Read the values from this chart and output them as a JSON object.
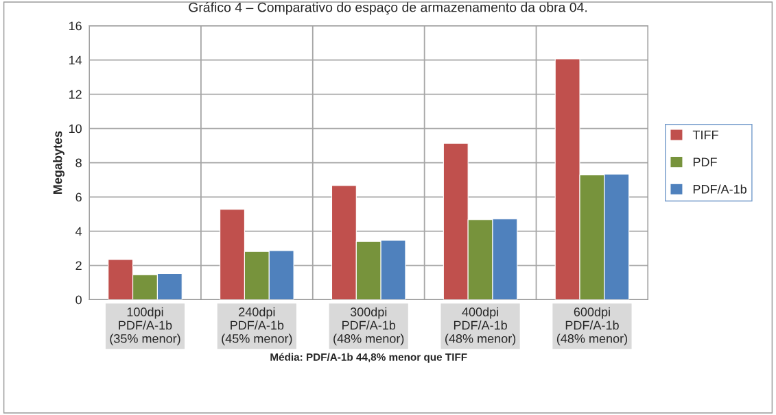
{
  "chart_data": {
    "type": "bar",
    "title": "Gráfico 4 – Comparativo do espaço de armazenamento da obra 04.",
    "categories": [
      "100dpi\nPDF/A-1b\n(35% menor)",
      "240dpi\nPDF/A-1b\n(45% menor)",
      "300dpi\nPDF/A-1b\n(48% menor)",
      "400dpi\nPDF/A-1b\n(48% menor)",
      "600dpi\nPDF/A-1b\n(48% menor)"
    ],
    "series": [
      {
        "name": "TIFF",
        "color": "#c0504d",
        "values": [
          2.34,
          5.27,
          6.66,
          9.13,
          14.06
        ]
      },
      {
        "name": "PDF",
        "color": "#77933c",
        "values": [
          1.45,
          2.81,
          3.4,
          4.67,
          7.28
        ]
      },
      {
        "name": "PDF/A-1b",
        "color": "#4f81bd",
        "values": [
          1.52,
          2.86,
          3.46,
          4.71,
          7.33
        ]
      }
    ],
    "xlabel": "Média: PDF/A-1b 44,8% menor que TIFF",
    "ylabel": "Megabytes",
    "ylim": [
      0,
      16
    ],
    "yticks": [
      0,
      2,
      4,
      6,
      8,
      10,
      12,
      14,
      16
    ],
    "grid": true,
    "legend": "right"
  }
}
